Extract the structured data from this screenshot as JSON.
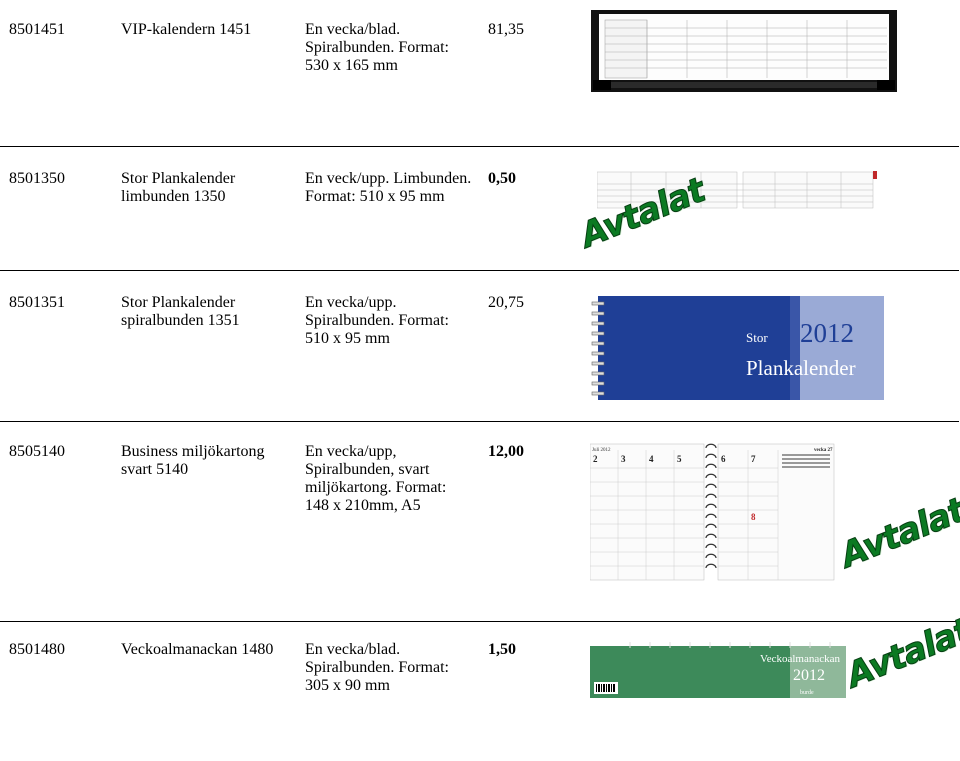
{
  "rows": [
    {
      "code": "8501451",
      "name": "VIP-kalendern 1451",
      "desc": "En vecka/blad. Spiralbunden. Format: 530 x 165 mm",
      "price": "81,35",
      "price_bold": false
    },
    {
      "code": "8501350",
      "name": "Stor Plankalender limbunden 1350",
      "desc_l1": "En veck/upp. Limbunden.",
      "desc_l2": "Format: 510 x 95 mm",
      "price": "0,50",
      "price_bold": true,
      "stamp": "Avtalat"
    },
    {
      "code": "8501351",
      "name": "Stor Plankalender spiralbunden 1351",
      "desc": "En vecka/upp. Spiralbunden. Format: 510 x 95 mm",
      "price": "20,75",
      "price_bold": false,
      "cover": {
        "small": "Stor",
        "big": "Plankalender",
        "year": "2012"
      }
    },
    {
      "code": "8505140",
      "name": "Business miljökartong svart 5140",
      "desc": "En vecka/upp, Spiralbunden, svart miljökartong. Format: 148 x 210mm, A5",
      "price": "12,00",
      "price_bold": true,
      "stamp": "Avtalat",
      "pages": {
        "month": "Juli 2012",
        "days_left": [
          "2",
          "3",
          "4",
          "5"
        ],
        "days_right": [
          "6",
          "7",
          "8"
        ],
        "week": "vecka 27"
      }
    },
    {
      "code": "8501480",
      "name": "Veckoalmanackan 1480",
      "desc": "En vecka/blad. Spiralbunden. Format: 305 x 90 mm",
      "price": "1,50",
      "price_bold": true,
      "stamp": "Avtalat",
      "cover": {
        "title": "Veckoalmanackan",
        "year": "2012",
        "brand": "burde"
      }
    }
  ]
}
